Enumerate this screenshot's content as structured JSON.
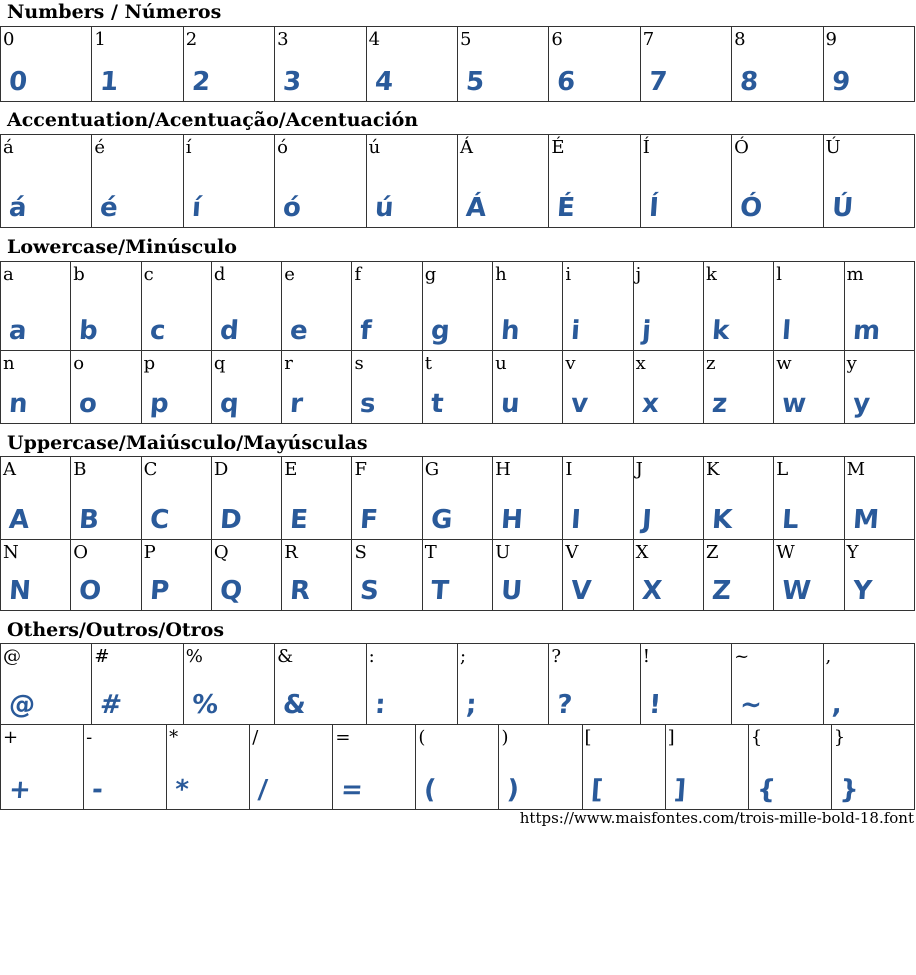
{
  "glyph_color": "#2a5a9a",
  "sections": [
    {
      "title": "Numbers / Números",
      "rows": [
        [
          "0",
          "1",
          "2",
          "3",
          "4",
          "5",
          "6",
          "7",
          "8",
          "9"
        ]
      ]
    },
    {
      "title": "Accentuation/Acentuação/Acentuación",
      "rows": [
        [
          "á",
          "é",
          "í",
          "ó",
          "ú",
          "Á",
          "É",
          "Í",
          "Ó",
          "Ú"
        ]
      ]
    },
    {
      "title": "Lowercase/Minúsculo",
      "rows": [
        [
          "a",
          "b",
          "c",
          "d",
          "e",
          "f",
          "g",
          "h",
          "i",
          "j",
          "k",
          "l",
          "m"
        ],
        [
          "n",
          "o",
          "p",
          "q",
          "r",
          "s",
          "t",
          "u",
          "v",
          "x",
          "z",
          "w",
          "y"
        ]
      ]
    },
    {
      "title": "Uppercase/Maiúsculo/Mayúsculas",
      "rows": [
        [
          "A",
          "B",
          "C",
          "D",
          "E",
          "F",
          "G",
          "H",
          "I",
          "J",
          "K",
          "L",
          "M"
        ],
        [
          "N",
          "O",
          "P",
          "Q",
          "R",
          "S",
          "T",
          "U",
          "V",
          "X",
          "Z",
          "W",
          "Y"
        ]
      ]
    },
    {
      "title": "Others/Outros/Otros",
      "rows": [
        [
          "@",
          "#",
          "%",
          "&",
          ":",
          ";",
          "?",
          "!",
          "~",
          ","
        ],
        [
          "+",
          "-",
          "*",
          "/",
          "=",
          "(",
          ")",
          "[",
          "]",
          "{",
          "}"
        ]
      ]
    }
  ],
  "footer": "https://www.maisfontes.com/trois-mille-bold-18.font"
}
